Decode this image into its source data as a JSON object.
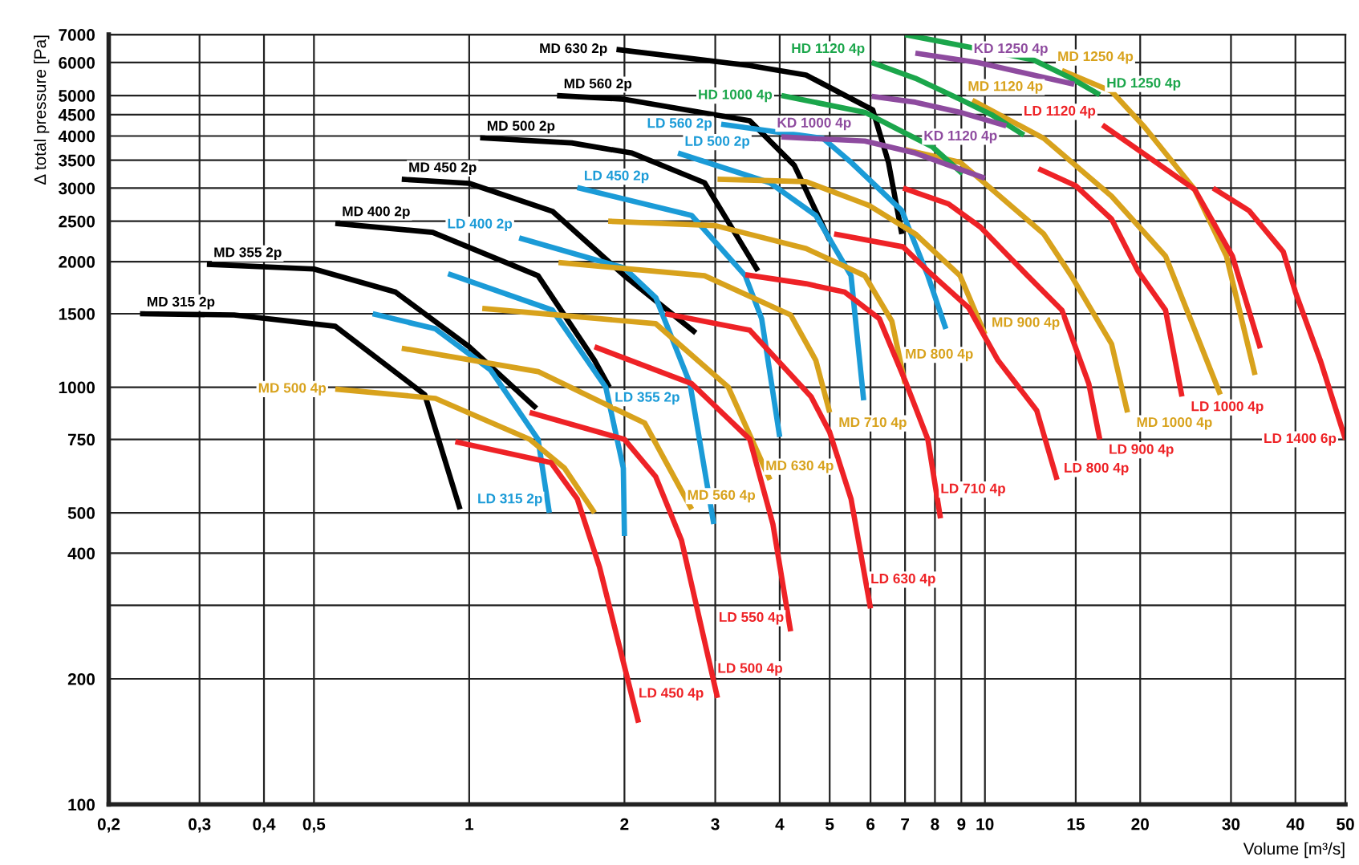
{
  "chart_data": {
    "type": "line",
    "log": "xy",
    "grid": true,
    "legend": false,
    "marker": "none",
    "line_style": "solid",
    "xlabel": "Volume [m³/s]",
    "ylabel": "Δ total pressure [Pa]",
    "xlim": [
      0.2,
      50
    ],
    "ylim": [
      100,
      7000
    ],
    "xticks": [
      {
        "value": 0.2,
        "label": "0,2"
      },
      {
        "value": 0.3,
        "label": "0,3"
      },
      {
        "value": 0.4,
        "label": "0,4"
      },
      {
        "value": 0.5,
        "label": "0,5"
      },
      1,
      2,
      3,
      4,
      5,
      6,
      7,
      8,
      9,
      10,
      15,
      20,
      30,
      40,
      50
    ],
    "yticks": [
      100,
      200,
      {
        "value": 300,
        "label": null
      },
      400,
      500,
      750,
      1000,
      1500,
      2000,
      2500,
      3000,
      3500,
      4000,
      4500,
      5000,
      6000,
      7000
    ],
    "series": [
      {
        "name": "MD 315 2p",
        "color": "#000000",
        "x": [
          0.23,
          0.35,
          0.55,
          0.82,
          0.96
        ],
        "values": [
          1500,
          1490,
          1400,
          960,
          510
        ]
      },
      {
        "name": "MD 355 2p",
        "color": "#000000",
        "x": [
          0.31,
          0.5,
          0.72,
          1.0,
          1.35
        ],
        "values": [
          1970,
          1920,
          1690,
          1250,
          890
        ]
      },
      {
        "name": "MD 400 2p",
        "color": "#000000",
        "x": [
          0.55,
          0.85,
          1.36,
          1.75,
          1.87
        ],
        "values": [
          2470,
          2350,
          1850,
          1160,
          1000
        ]
      },
      {
        "name": "MD 450 2p",
        "color": "#000000",
        "x": [
          0.74,
          1.0,
          1.45,
          2.0,
          2.75
        ],
        "values": [
          3150,
          3080,
          2640,
          1850,
          1350
        ]
      },
      {
        "name": "MD 500 2p",
        "color": "#000000",
        "x": [
          1.05,
          1.58,
          2.07,
          2.86,
          3.63
        ],
        "values": [
          3960,
          3850,
          3640,
          3090,
          1900
        ]
      },
      {
        "name": "MD 560 2p",
        "color": "#000000",
        "x": [
          1.48,
          2.0,
          3.5,
          4.27,
          5.0
        ],
        "values": [
          5000,
          4900,
          4350,
          3400,
          2250
        ]
      },
      {
        "name": "MD 630 2p",
        "color": "#000000",
        "x": [
          1.93,
          3.5,
          4.5,
          6.06,
          6.5,
          6.9
        ],
        "values": [
          6450,
          5900,
          5600,
          4620,
          3460,
          2330
        ]
      },
      {
        "name": "LD 315 2p",
        "color": "#1b9bd7",
        "x": [
          0.65,
          0.86,
          1.1,
          1.36,
          1.43
        ],
        "values": [
          1500,
          1380,
          1100,
          750,
          500
        ]
      },
      {
        "name": "LD 355 2p",
        "color": "#1b9bd7",
        "x": [
          0.91,
          1.45,
          1.84,
          1.99,
          2.0
        ],
        "values": [
          1870,
          1530,
          1000,
          640,
          440
        ]
      },
      {
        "name": "LD 400 2p",
        "color": "#1b9bd7",
        "x": [
          1.25,
          2.0,
          2.3,
          2.68,
          2.98
        ],
        "values": [
          2280,
          1930,
          1640,
          1020,
          470
        ]
      },
      {
        "name": "LD 450 2p",
        "color": "#1b9bd7",
        "x": [
          1.62,
          2.7,
          3.43,
          3.69,
          4.0
        ],
        "values": [
          3010,
          2580,
          1850,
          1460,
          760
        ]
      },
      {
        "name": "LD 500 2p",
        "color": "#1b9bd7",
        "x": [
          2.54,
          3.83,
          4.7,
          5.5,
          5.82
        ],
        "values": [
          3640,
          3090,
          2580,
          1850,
          930
        ]
      },
      {
        "name": "LD 560 2p",
        "color": "#1b9bd7",
        "x": [
          3.08,
          4.85,
          5.5,
          6.9,
          7.75,
          8.4
        ],
        "values": [
          4270,
          3950,
          3460,
          2650,
          1850,
          1380
        ]
      },
      {
        "name": "MD 500 4p",
        "color": "#d8a21c",
        "x": [
          0.55,
          0.86,
          1.31,
          1.53,
          1.75
        ],
        "values": [
          990,
          940,
          750,
          640,
          500
        ]
      },
      {
        "name": "MD 560 4p",
        "color": "#d8a21c",
        "x": [
          0.74,
          1.36,
          2.19,
          2.7
        ],
        "values": [
          1240,
          1090,
          820,
          510
        ]
      },
      {
        "name": "MD 630 4p",
        "color": "#d8a21c",
        "x": [
          1.06,
          2.3,
          3.18,
          3.83
        ],
        "values": [
          1545,
          1420,
          1000,
          600
        ]
      },
      {
        "name": "MD 710 4p",
        "color": "#d8a21c",
        "x": [
          1.49,
          2.86,
          4.2,
          4.7,
          5.0
        ],
        "values": [
          1990,
          1850,
          1490,
          1160,
          870
        ]
      },
      {
        "name": "MD 800 4p",
        "color": "#d8a21c",
        "x": [
          1.86,
          3.0,
          4.5,
          5.85,
          6.6,
          7.0
        ],
        "values": [
          2500,
          2440,
          2150,
          1850,
          1440,
          1020
        ]
      },
      {
        "name": "MD 900 4p",
        "color": "#d8a21c",
        "x": [
          3.03,
          4.5,
          5.95,
          7.33,
          8.95,
          10
        ],
        "values": [
          3150,
          3110,
          2730,
          2330,
          1850,
          1340
        ]
      },
      {
        "name": "MD 1000 4p",
        "color": "#d8a21c",
        "x": [
          7.0,
          8.95,
          10,
          13,
          14.7,
          17.6,
          18.9
        ],
        "values": [
          3710,
          3460,
          3080,
          2330,
          1850,
          1270,
          870
        ]
      },
      {
        "name": "MD 1120 4p",
        "color": "#d8a21c",
        "x": [
          9.45,
          13,
          17.6,
          22.4,
          28.6
        ],
        "values": [
          4870,
          3950,
          2870,
          2060,
          960
        ]
      },
      {
        "name": "MD 1250 4p",
        "color": "#d8a21c",
        "x": [
          14.1,
          17.6,
          20.4,
          25.5,
          29.4,
          33.4
        ],
        "values": [
          5740,
          5120,
          4200,
          2980,
          2060,
          1070
        ]
      },
      {
        "name": "LD 450 4p",
        "color": "#ee2226",
        "x": [
          0.94,
          1.44,
          1.62,
          1.79,
          2.13
        ],
        "values": [
          740,
          660,
          540,
          370,
          157
        ]
      },
      {
        "name": "LD 500 4p",
        "color": "#ee2226",
        "x": [
          1.31,
          2.0,
          2.3,
          2.58,
          3.03
        ],
        "values": [
          870,
          750,
          610,
          430,
          180
        ]
      },
      {
        "name": "LD 550 4p",
        "color": "#ee2226",
        "x": [
          1.75,
          2.7,
          3.5,
          3.88,
          4.2
        ],
        "values": [
          1250,
          1020,
          750,
          470,
          260
        ]
      },
      {
        "name": "LD 630 4p",
        "color": "#ee2226",
        "x": [
          2.4,
          3.5,
          4.6,
          5.0,
          5.5,
          6.0
        ],
        "values": [
          1500,
          1370,
          950,
          780,
          540,
          295
        ]
      },
      {
        "name": "LD 710 4p",
        "color": "#ee2226",
        "x": [
          3.43,
          4.5,
          5.35,
          6.24,
          7.04,
          7.75,
          8.2
        ],
        "values": [
          1860,
          1770,
          1690,
          1460,
          1020,
          750,
          485
        ]
      },
      {
        "name": "LD 800 4p",
        "color": "#ee2226",
        "x": [
          5.1,
          6.94,
          7.75,
          9.3,
          10.6,
          12.6,
          13.8
        ],
        "values": [
          2330,
          2170,
          1900,
          1550,
          1160,
          880,
          600
        ]
      },
      {
        "name": "LD 900 4p",
        "color": "#ee2226",
        "x": [
          6.94,
          8.5,
          9.8,
          12.1,
          14.1,
          15.9,
          16.7
        ],
        "values": [
          3000,
          2750,
          2420,
          1850,
          1530,
          1020,
          750
        ]
      },
      {
        "name": "LD 1000 4p",
        "color": "#ee2226",
        "x": [
          12.7,
          15,
          17.6,
          19.8,
          22.4,
          24.1
        ],
        "values": [
          3340,
          3040,
          2530,
          1900,
          1530,
          950
        ]
      },
      {
        "name": "LD 1120 4p",
        "color": "#ee2226",
        "x": [
          16.9,
          19.8,
          25.5,
          30.2,
          34.2
        ],
        "values": [
          4250,
          3710,
          2980,
          2060,
          1240
        ]
      },
      {
        "name": "LD 1400 6p",
        "color": "#ee2226",
        "x": [
          27.7,
          32.5,
          37.9,
          40,
          44.7,
          50
        ],
        "values": [
          3000,
          2650,
          2110,
          1690,
          1160,
          750
        ]
      },
      {
        "name": "HD 1000 4p",
        "color": "#1ba64b",
        "x": [
          4.03,
          5.85,
          6.7,
          7.9,
          9.05
        ],
        "values": [
          5000,
          4560,
          4180,
          3770,
          3250
        ]
      },
      {
        "name": "HD 1120 4p",
        "color": "#1ba64b",
        "x": [
          6.03,
          7.33,
          8.95,
          10.3,
          11.9
        ],
        "values": [
          6000,
          5500,
          4900,
          4500,
          4020
        ]
      },
      {
        "name": "HD 1250 4p",
        "color": "#1ba64b",
        "x": [
          7.0,
          8.95,
          12.4,
          14.7,
          16.7
        ],
        "values": [
          7000,
          6600,
          6090,
          5500,
          5020
        ]
      },
      {
        "name": "KD 1000 4p",
        "color": "#8e4b9f",
        "x": [
          4.03,
          5.85,
          7.33,
          10
        ],
        "values": [
          3980,
          3890,
          3640,
          3170
        ]
      },
      {
        "name": "KD 1120 4p",
        "color": "#8e4b9f",
        "x": [
          6.03,
          7.33,
          8.95,
          11
        ],
        "values": [
          4980,
          4820,
          4560,
          4230
        ]
      },
      {
        "name": "KD 1250 4p",
        "color": "#8e4b9f",
        "x": [
          7.33,
          9.7,
          14.9
        ],
        "values": [
          6320,
          6000,
          5320
        ]
      }
    ]
  }
}
